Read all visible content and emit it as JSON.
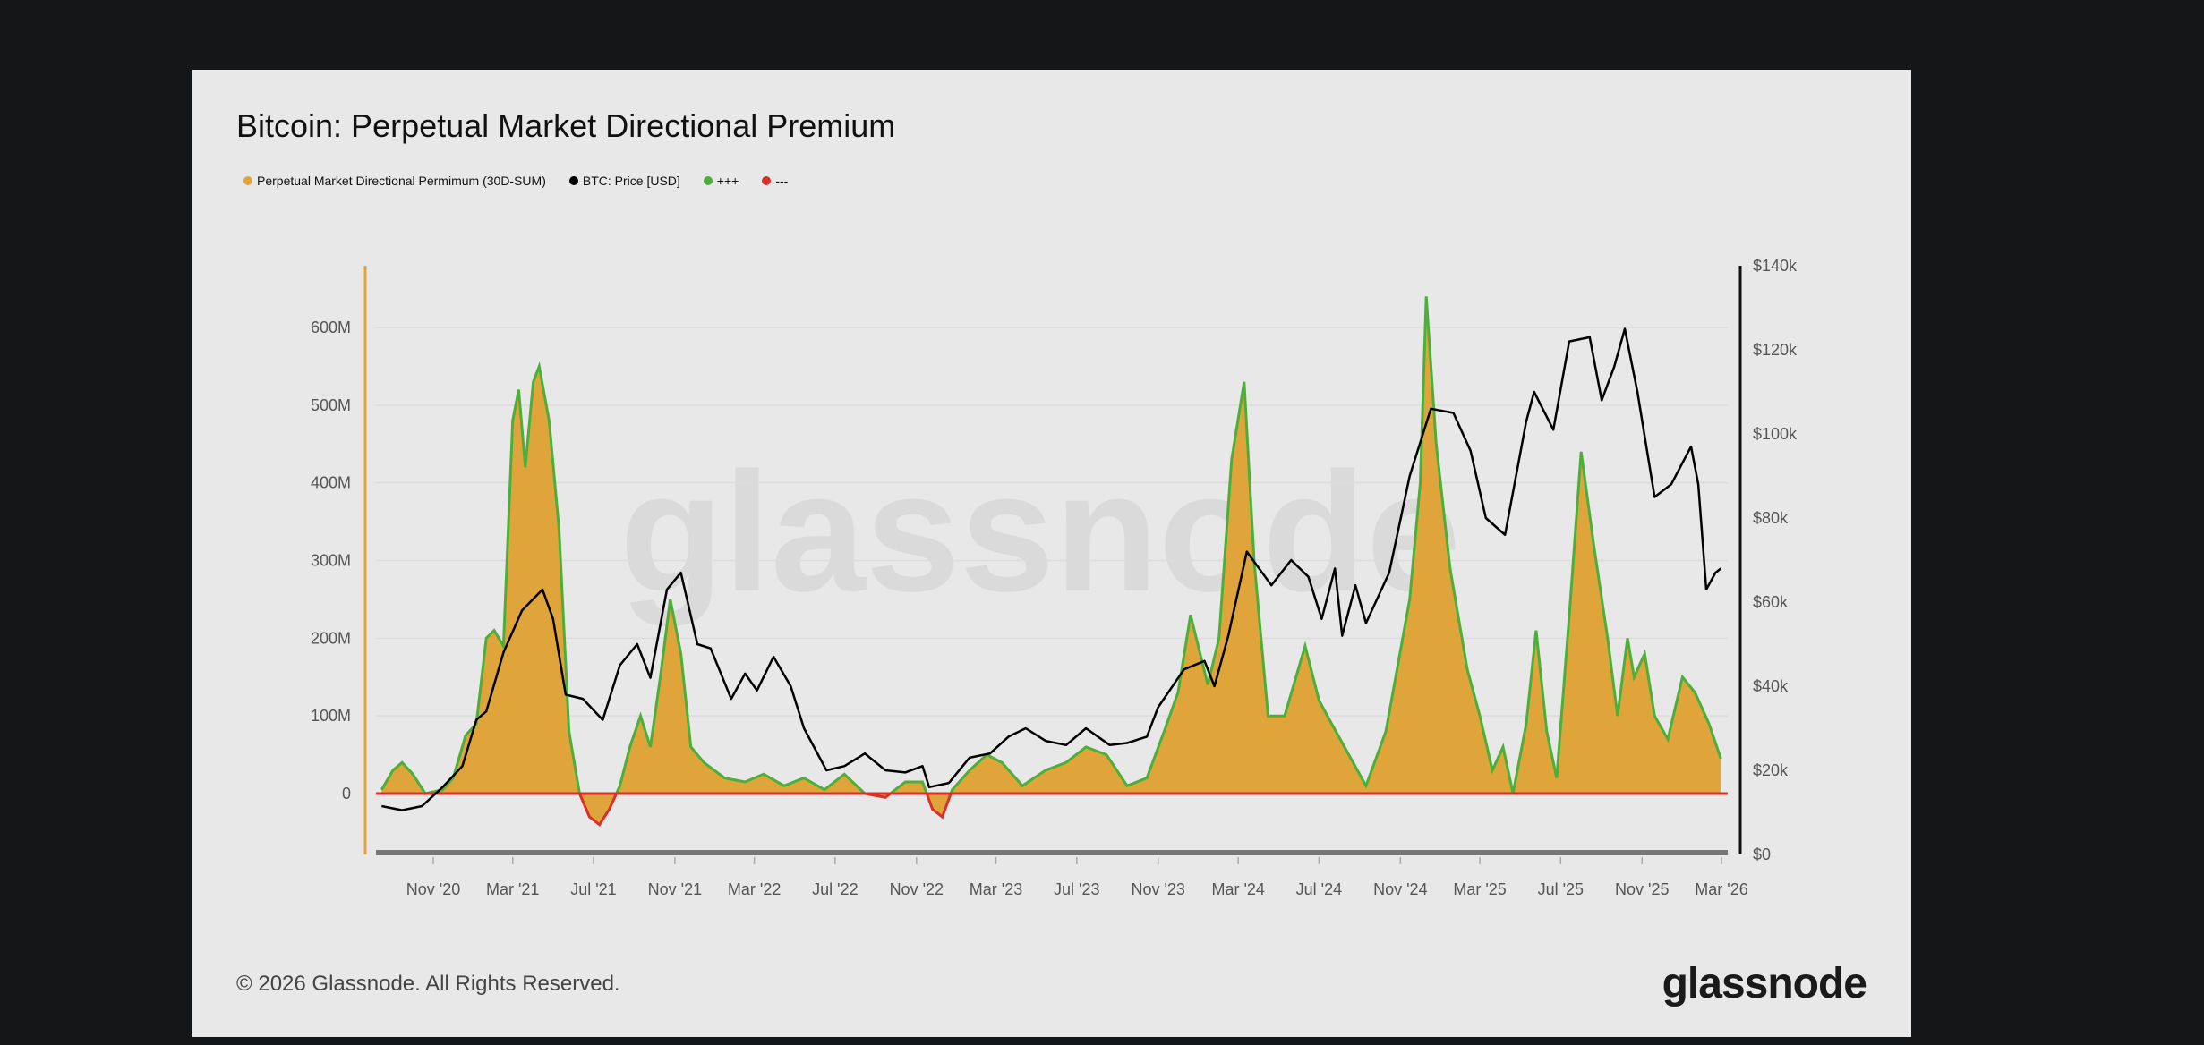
{
  "title": "Bitcoin: Perpetual Market Directional Premium",
  "legend": [
    {
      "label": "Perpetual Market Directional Permimum (30D-SUM)",
      "color": "#e0a53a"
    },
    {
      "label": "BTC: Price [USD]",
      "color": "#000000"
    },
    {
      "label": "+++",
      "color": "#4caf3a"
    },
    {
      "label": "---",
      "color": "#d9302a"
    }
  ],
  "watermark": "glassnode",
  "footer": "© 2026 Glassnode. All Rights Reserved.",
  "logo": "glassnode",
  "chart_data": {
    "type": "area",
    "title": "Bitcoin: Perpetual Market Directional Premium",
    "x_ticks": [
      "Nov '20",
      "Mar '21",
      "Jul '21",
      "Nov '21",
      "Mar '22",
      "Jul '22",
      "Nov '22",
      "Mar '23",
      "Jul '23",
      "Nov '23",
      "Mar '24",
      "Jul '24",
      "Nov '24",
      "Mar '25",
      "Jul '25",
      "Nov '25",
      "Mar '26"
    ],
    "x_tick_dates": [
      "2020-11-01",
      "2021-03-01",
      "2021-07-01",
      "2021-11-01",
      "2022-03-01",
      "2022-07-01",
      "2022-11-01",
      "2023-03-01",
      "2023-07-01",
      "2023-11-01",
      "2024-03-01",
      "2024-07-01",
      "2024-11-01",
      "2025-03-01",
      "2025-07-01",
      "2025-11-01",
      "2026-03-01"
    ],
    "y_left_ticks": [
      "0",
      "100M",
      "200M",
      "300M",
      "400M",
      "500M",
      "600M"
    ],
    "y_left_tick_values": [
      0,
      100,
      200,
      300,
      400,
      500,
      600
    ],
    "y_left_unit": "M",
    "ylim_left": [
      -75,
      690
    ],
    "y_right_ticks": [
      "$0",
      "$20k",
      "$40k",
      "$60k",
      "$80k",
      "$100k",
      "$120k",
      "$140k"
    ],
    "y_right_tick_values": [
      0,
      20,
      40,
      60,
      80,
      100,
      120,
      140
    ],
    "ylim_right": [
      0,
      140
    ],
    "grid": true,
    "legend_position": "top-left",
    "series": [
      {
        "name": "Perpetual Market Directional Permimum (30D-SUM)",
        "axis": "left",
        "type": "area",
        "color": "#e0a53a",
        "positive_color": "#4caf3a",
        "negative_color": "#d9302a",
        "points": [
          [
            "2020-08-15",
            5
          ],
          [
            "2020-09-01",
            30
          ],
          [
            "2020-09-15",
            40
          ],
          [
            "2020-10-01",
            25
          ],
          [
            "2020-10-20",
            0
          ],
          [
            "2020-11-15",
            5
          ],
          [
            "2020-12-01",
            20
          ],
          [
            "2020-12-20",
            75
          ],
          [
            "2021-01-05",
            90
          ],
          [
            "2021-01-20",
            200
          ],
          [
            "2021-02-01",
            210
          ],
          [
            "2021-02-15",
            190
          ],
          [
            "2021-03-01",
            480
          ],
          [
            "2021-03-10",
            520
          ],
          [
            "2021-03-20",
            420
          ],
          [
            "2021-04-01",
            530
          ],
          [
            "2021-04-10",
            550
          ],
          [
            "2021-04-25",
            480
          ],
          [
            "2021-05-10",
            340
          ],
          [
            "2021-05-25",
            80
          ],
          [
            "2021-06-10",
            0
          ],
          [
            "2021-06-25",
            -30
          ],
          [
            "2021-07-10",
            -40
          ],
          [
            "2021-07-25",
            -20
          ],
          [
            "2021-08-10",
            10
          ],
          [
            "2021-08-25",
            60
          ],
          [
            "2021-09-10",
            100
          ],
          [
            "2021-09-25",
            60
          ],
          [
            "2021-10-10",
            150
          ],
          [
            "2021-10-25",
            250
          ],
          [
            "2021-11-10",
            180
          ],
          [
            "2021-11-25",
            60
          ],
          [
            "2021-12-15",
            40
          ],
          [
            "2022-01-15",
            20
          ],
          [
            "2022-02-15",
            15
          ],
          [
            "2022-03-15",
            25
          ],
          [
            "2022-04-15",
            10
          ],
          [
            "2022-05-15",
            20
          ],
          [
            "2022-06-15",
            5
          ],
          [
            "2022-07-15",
            25
          ],
          [
            "2022-08-15",
            0
          ],
          [
            "2022-09-15",
            -5
          ],
          [
            "2022-10-15",
            15
          ],
          [
            "2022-11-10",
            15
          ],
          [
            "2022-11-25",
            -20
          ],
          [
            "2022-12-10",
            -30
          ],
          [
            "2022-12-25",
            5
          ],
          [
            "2023-01-20",
            30
          ],
          [
            "2023-02-15",
            50
          ],
          [
            "2023-03-10",
            40
          ],
          [
            "2023-04-10",
            10
          ],
          [
            "2023-05-15",
            30
          ],
          [
            "2023-06-15",
            40
          ],
          [
            "2023-07-15",
            60
          ],
          [
            "2023-08-15",
            50
          ],
          [
            "2023-09-15",
            10
          ],
          [
            "2023-10-15",
            20
          ],
          [
            "2023-11-10",
            80
          ],
          [
            "2023-12-01",
            130
          ],
          [
            "2023-12-20",
            230
          ],
          [
            "2024-01-15",
            140
          ],
          [
            "2024-02-01",
            200
          ],
          [
            "2024-02-20",
            430
          ],
          [
            "2024-03-10",
            530
          ],
          [
            "2024-03-25",
            300
          ],
          [
            "2024-04-15",
            100
          ],
          [
            "2024-05-10",
            100
          ],
          [
            "2024-06-10",
            190
          ],
          [
            "2024-07-01",
            120
          ],
          [
            "2024-07-20",
            90
          ],
          [
            "2024-08-15",
            50
          ],
          [
            "2024-09-10",
            10
          ],
          [
            "2024-10-10",
            80
          ],
          [
            "2024-11-15",
            250
          ],
          [
            "2024-12-01",
            400
          ],
          [
            "2024-12-10",
            640
          ],
          [
            "2024-12-25",
            450
          ],
          [
            "2025-01-15",
            290
          ],
          [
            "2025-02-10",
            160
          ],
          [
            "2025-03-01",
            100
          ],
          [
            "2025-03-20",
            30
          ],
          [
            "2025-04-05",
            60
          ],
          [
            "2025-04-20",
            0
          ],
          [
            "2025-05-10",
            90
          ],
          [
            "2025-05-25",
            210
          ],
          [
            "2025-06-10",
            80
          ],
          [
            "2025-06-25",
            20
          ],
          [
            "2025-07-15",
            240
          ],
          [
            "2025-08-01",
            440
          ],
          [
            "2025-08-20",
            320
          ],
          [
            "2025-09-10",
            200
          ],
          [
            "2025-09-25",
            100
          ],
          [
            "2025-10-10",
            200
          ],
          [
            "2025-10-20",
            150
          ],
          [
            "2025-11-05",
            180
          ],
          [
            "2025-11-20",
            100
          ],
          [
            "2025-12-10",
            70
          ],
          [
            "2026-01-01",
            150
          ],
          [
            "2026-01-20",
            130
          ],
          [
            "2026-02-10",
            90
          ],
          [
            "2026-02-28",
            45
          ]
        ]
      },
      {
        "name": "BTC: Price [USD]",
        "axis": "right",
        "type": "line",
        "color": "#000000",
        "points": [
          [
            "2020-08-15",
            11.5
          ],
          [
            "2020-09-15",
            10.5
          ],
          [
            "2020-10-15",
            11.5
          ],
          [
            "2020-11-15",
            16
          ],
          [
            "2020-12-15",
            21
          ],
          [
            "2021-01-05",
            32
          ],
          [
            "2021-01-20",
            34
          ],
          [
            "2021-02-15",
            48
          ],
          [
            "2021-03-15",
            58
          ],
          [
            "2021-04-15",
            63
          ],
          [
            "2021-05-01",
            56
          ],
          [
            "2021-05-20",
            38
          ],
          [
            "2021-06-15",
            37
          ],
          [
            "2021-07-15",
            32
          ],
          [
            "2021-08-10",
            45
          ],
          [
            "2021-09-05",
            50
          ],
          [
            "2021-09-25",
            42
          ],
          [
            "2021-10-20",
            63
          ],
          [
            "2021-11-10",
            67
          ],
          [
            "2021-12-05",
            50
          ],
          [
            "2021-12-25",
            49
          ],
          [
            "2022-01-25",
            37
          ],
          [
            "2022-02-15",
            43
          ],
          [
            "2022-03-05",
            39
          ],
          [
            "2022-03-30",
            47
          ],
          [
            "2022-04-25",
            40
          ],
          [
            "2022-05-15",
            30
          ],
          [
            "2022-06-18",
            20
          ],
          [
            "2022-07-15",
            21
          ],
          [
            "2022-08-15",
            24
          ],
          [
            "2022-09-15",
            20
          ],
          [
            "2022-10-15",
            19.5
          ],
          [
            "2022-11-10",
            21
          ],
          [
            "2022-11-20",
            16
          ],
          [
            "2022-12-20",
            17
          ],
          [
            "2023-01-20",
            23
          ],
          [
            "2023-02-20",
            24
          ],
          [
            "2023-03-20",
            28
          ],
          [
            "2023-04-15",
            30
          ],
          [
            "2023-05-15",
            27
          ],
          [
            "2023-06-15",
            26
          ],
          [
            "2023-07-15",
            30
          ],
          [
            "2023-08-20",
            26
          ],
          [
            "2023-09-15",
            26.5
          ],
          [
            "2023-10-15",
            28
          ],
          [
            "2023-11-01",
            35
          ],
          [
            "2023-12-10",
            44
          ],
          [
            "2024-01-10",
            46
          ],
          [
            "2024-01-25",
            40
          ],
          [
            "2024-02-15",
            52
          ],
          [
            "2024-03-14",
            72
          ],
          [
            "2024-04-20",
            64
          ],
          [
            "2024-05-20",
            70
          ],
          [
            "2024-06-15",
            66
          ],
          [
            "2024-07-05",
            56
          ],
          [
            "2024-07-25",
            68
          ],
          [
            "2024-08-05",
            52
          ],
          [
            "2024-08-25",
            64
          ],
          [
            "2024-09-10",
            55
          ],
          [
            "2024-10-15",
            67
          ],
          [
            "2024-11-15",
            90
          ],
          [
            "2024-12-17",
            106
          ],
          [
            "2025-01-20",
            105
          ],
          [
            "2025-02-15",
            96
          ],
          [
            "2025-03-10",
            80
          ],
          [
            "2025-04-08",
            76
          ],
          [
            "2025-05-10",
            103
          ],
          [
            "2025-05-22",
            110
          ],
          [
            "2025-06-20",
            101
          ],
          [
            "2025-07-14",
            122
          ],
          [
            "2025-08-14",
            123
          ],
          [
            "2025-09-01",
            108
          ],
          [
            "2025-09-20",
            116
          ],
          [
            "2025-10-06",
            125
          ],
          [
            "2025-10-25",
            110
          ],
          [
            "2025-11-20",
            85
          ],
          [
            "2025-12-15",
            88
          ],
          [
            "2026-01-14",
            97
          ],
          [
            "2026-01-25",
            88
          ],
          [
            "2026-02-06",
            63
          ],
          [
            "2026-02-20",
            67
          ],
          [
            "2026-02-28",
            68
          ]
        ]
      }
    ]
  }
}
